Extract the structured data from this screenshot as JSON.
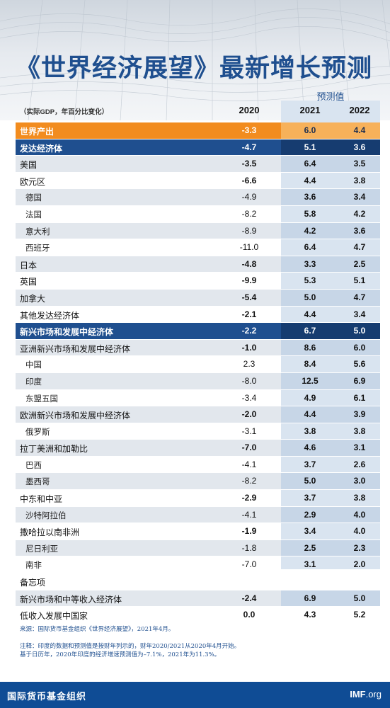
{
  "title": "《世界经济展望》最新增长预测",
  "unit_label": "（实际GDP，年百分比变化）",
  "forecast_label": "预测值",
  "colors": {
    "brand_blue": "#1f4f8f",
    "world_orange": "#f28c1f",
    "footer_blue": "#0f4c95"
  },
  "chart_data": {
    "type": "table",
    "columns": [
      "2020",
      "2021",
      "2022"
    ],
    "rows": [
      {
        "name": "世界产出",
        "values": [
          "-3.3",
          "6.0",
          "4.4"
        ],
        "style": "world"
      },
      {
        "name": "发达经济体",
        "values": [
          "-4.7",
          "5.1",
          "3.6"
        ],
        "style": "major"
      },
      {
        "name": "美国",
        "values": [
          "-3.5",
          "6.4",
          "3.5"
        ],
        "style": "shade"
      },
      {
        "name": "欧元区",
        "values": [
          "-6.6",
          "4.4",
          "3.8"
        ],
        "style": "plain"
      },
      {
        "name": "德国",
        "values": [
          "-4.9",
          "3.6",
          "3.4"
        ],
        "style": "shade-sub"
      },
      {
        "name": "法国",
        "values": [
          "-8.2",
          "5.8",
          "4.2"
        ],
        "style": "sub"
      },
      {
        "name": "意大利",
        "values": [
          "-8.9",
          "4.2",
          "3.6"
        ],
        "style": "shade-sub"
      },
      {
        "name": "西班牙",
        "values": [
          "-11.0",
          "6.4",
          "4.7"
        ],
        "style": "sub"
      },
      {
        "name": "日本",
        "values": [
          "-4.8",
          "3.3",
          "2.5"
        ],
        "style": "shade"
      },
      {
        "name": "英国",
        "values": [
          "-9.9",
          "5.3",
          "5.1"
        ],
        "style": "plain"
      },
      {
        "name": "加拿大",
        "values": [
          "-5.4",
          "5.0",
          "4.7"
        ],
        "style": "shade"
      },
      {
        "name": "其他发达经济体",
        "values": [
          "-2.1",
          "4.4",
          "3.4"
        ],
        "style": "plain"
      },
      {
        "name": "新兴市场和发展中经济体",
        "values": [
          "-2.2",
          "6.7",
          "5.0"
        ],
        "style": "major"
      },
      {
        "name": "亚洲新兴市场和发展中经济体",
        "values": [
          "-1.0",
          "8.6",
          "6.0"
        ],
        "style": "shade"
      },
      {
        "name": "中国",
        "values": [
          "2.3",
          "8.4",
          "5.6"
        ],
        "style": "sub"
      },
      {
        "name": "印度",
        "values": [
          "-8.0",
          "12.5",
          "6.9"
        ],
        "style": "shade-sub"
      },
      {
        "name": "东盟五国",
        "values": [
          "-3.4",
          "4.9",
          "6.1"
        ],
        "style": "sub"
      },
      {
        "name": "欧洲新兴市场和发展中经济体",
        "values": [
          "-2.0",
          "4.4",
          "3.9"
        ],
        "style": "shade"
      },
      {
        "name": "俄罗斯",
        "values": [
          "-3.1",
          "3.8",
          "3.8"
        ],
        "style": "sub"
      },
      {
        "name": "拉丁美洲和加勒比",
        "values": [
          "-7.0",
          "4.6",
          "3.1"
        ],
        "style": "shade"
      },
      {
        "name": "巴西",
        "values": [
          "-4.1",
          "3.7",
          "2.6"
        ],
        "style": "sub"
      },
      {
        "name": "墨西哥",
        "values": [
          "-8.2",
          "5.0",
          "3.0"
        ],
        "style": "shade-sub"
      },
      {
        "name": "中东和中亚",
        "values": [
          "-2.9",
          "3.7",
          "3.8"
        ],
        "style": "plain"
      },
      {
        "name": "沙特阿拉伯",
        "values": [
          "-4.1",
          "2.9",
          "4.0"
        ],
        "style": "shade-sub"
      },
      {
        "name": "撒哈拉以南非洲",
        "values": [
          "-1.9",
          "3.4",
          "4.0"
        ],
        "style": "plain"
      },
      {
        "name": "尼日利亚",
        "values": [
          "-1.8",
          "2.5",
          "2.3"
        ],
        "style": "shade-sub"
      },
      {
        "name": "南非",
        "values": [
          "-7.0",
          "3.1",
          "2.0"
        ],
        "style": "sub"
      },
      {
        "name": "备忘项",
        "values": [
          "",
          "",
          ""
        ],
        "style": "memo"
      },
      {
        "name": "新兴市场和中等收入经济体",
        "values": [
          "-2.4",
          "6.9",
          "5.0"
        ],
        "style": "shade"
      },
      {
        "name": "低收入发展中国家",
        "values": [
          "0.0",
          "4.3",
          "5.2"
        ],
        "style": "plain"
      }
    ]
  },
  "notes": {
    "source": "来源：国际货币基金组织《世界经济展望》，2021年4月。",
    "note1": "注释：印度的数据和预测值是按财年列示的，财年2020/2021从2020年4月开始。",
    "note2": "基于日历年，2020年印度的经济增速预测值为–7.1%，2021年为11.3%。"
  },
  "footer": {
    "org": "国际货币基金组织",
    "site_main": "IMF",
    "site_suffix": ".org"
  }
}
